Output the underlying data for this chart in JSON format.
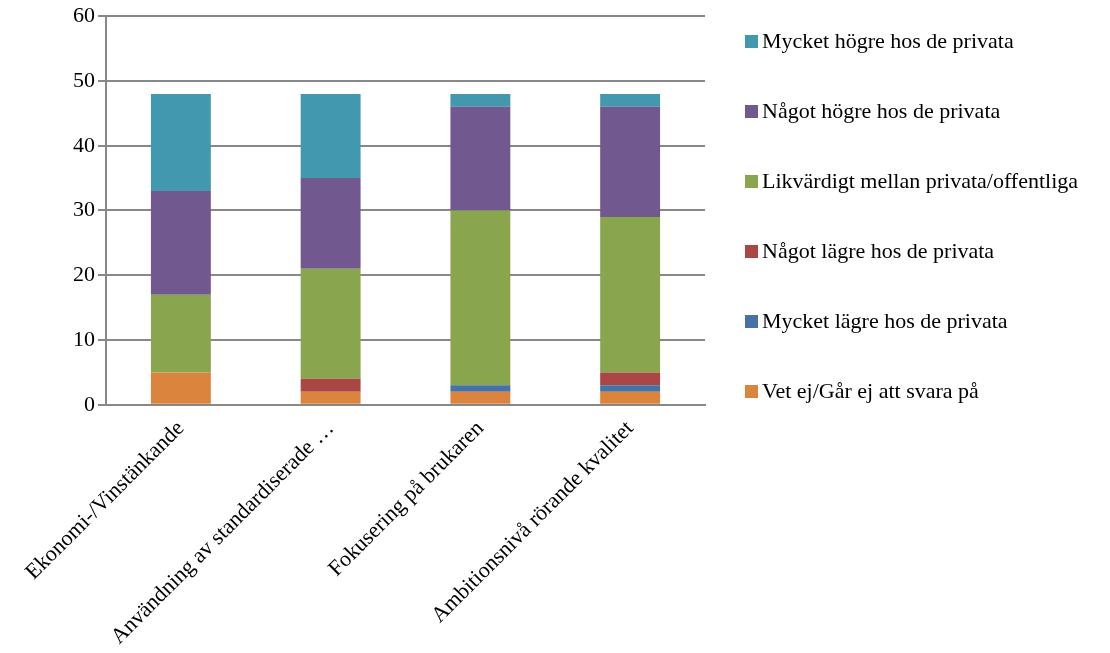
{
  "chart_data": {
    "type": "bar",
    "stacked": true,
    "categories": [
      "Ekonomi-/Vinstänkande",
      "Användning av standardiserade …",
      "Fokusering på brukaren",
      "Ambitionsnivå rörande kvalitet"
    ],
    "series": [
      {
        "name": "Vet ej/Går ej att svara på",
        "color": "#db843d",
        "values": [
          5,
          2,
          2,
          2
        ]
      },
      {
        "name": "Mycket lägre hos de privata",
        "color": "#4572a7",
        "values": [
          0,
          0,
          1,
          1
        ]
      },
      {
        "name": "Något lägre hos de privata",
        "color": "#aa4643",
        "values": [
          0,
          2,
          0,
          2
        ]
      },
      {
        "name": "Likvärdigt mellan privata/offentliga",
        "color": "#89a54e",
        "values": [
          12,
          17,
          27,
          24
        ]
      },
      {
        "name": "Något högre hos de privata",
        "color": "#71588f",
        "values": [
          16,
          14,
          16,
          17
        ]
      },
      {
        "name": "Mycket högre hos de privata",
        "color": "#4198af",
        "values": [
          15,
          13,
          2,
          2
        ]
      }
    ],
    "ylim": [
      0,
      60
    ],
    "yticks": [
      0,
      10,
      20,
      30,
      40,
      50,
      60
    ],
    "grid": "y",
    "legend": "right"
  }
}
